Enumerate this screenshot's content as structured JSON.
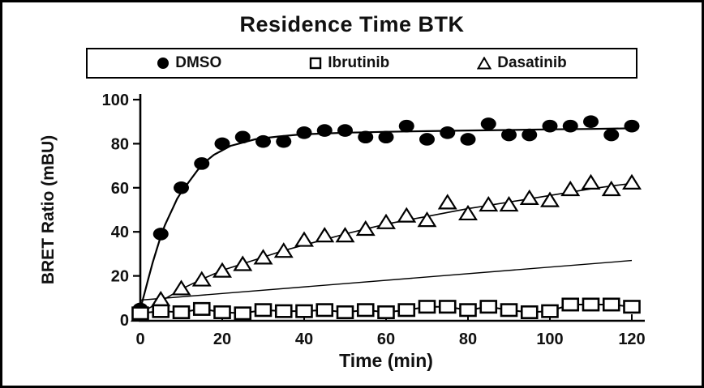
{
  "figure": {
    "background_color": "#ffffff",
    "border_color": "#000000",
    "text_color": "#111111"
  },
  "legend": {
    "items": [
      {
        "label": "DMSO",
        "marker": "filled-circle"
      },
      {
        "label": "Ibrutinib",
        "marker": "open-square"
      },
      {
        "label": "Dasatinib",
        "marker": "open-triangle"
      }
    ]
  },
  "chart_data": {
    "type": "scatter",
    "title": "Residence Time BTK",
    "xlabel": "Time (min)",
    "ylabel": "BRET Ratio (mBU)",
    "xlim": [
      0,
      120
    ],
    "ylim": [
      0,
      100
    ],
    "x_ticks": [
      0,
      20,
      40,
      60,
      80,
      100,
      120
    ],
    "y_ticks": [
      0,
      20,
      40,
      60,
      80,
      100
    ],
    "grid": false,
    "legend_position": "top-center-boxed",
    "x": [
      0,
      5,
      10,
      15,
      20,
      25,
      30,
      35,
      40,
      45,
      50,
      55,
      60,
      65,
      70,
      75,
      80,
      85,
      90,
      95,
      100,
      105,
      110,
      115,
      120
    ],
    "series": [
      {
        "name": "DMSO",
        "marker": "filled-circle",
        "color": "#000000",
        "values": [
          5,
          39,
          60,
          71,
          80,
          83,
          81,
          81,
          85,
          86,
          86,
          83,
          83,
          88,
          82,
          85,
          82,
          89,
          84,
          84,
          88,
          88,
          90,
          84,
          88
        ],
        "fit_curve": [
          [
            0,
            5
          ],
          [
            1,
            12
          ],
          [
            2,
            19
          ],
          [
            3,
            26
          ],
          [
            4,
            32
          ],
          [
            5,
            38
          ],
          [
            6,
            43
          ],
          [
            7,
            47
          ],
          [
            8,
            51
          ],
          [
            9,
            55
          ],
          [
            10,
            58
          ],
          [
            12,
            63
          ],
          [
            14,
            68
          ],
          [
            16,
            72
          ],
          [
            18,
            75
          ],
          [
            20,
            77
          ],
          [
            22,
            79
          ],
          [
            24,
            80
          ],
          [
            26,
            81
          ],
          [
            28,
            82
          ],
          [
            30,
            82.5
          ],
          [
            34,
            83.3
          ],
          [
            38,
            84
          ],
          [
            42,
            84.4
          ],
          [
            46,
            84.7
          ],
          [
            50,
            85
          ],
          [
            55,
            85.2
          ],
          [
            60,
            85.4
          ],
          [
            70,
            85.7
          ],
          [
            80,
            86
          ],
          [
            90,
            86.2
          ],
          [
            100,
            86.5
          ],
          [
            110,
            86.7
          ],
          [
            120,
            87
          ]
        ]
      },
      {
        "name": "Ibrutinib",
        "marker": "open-square",
        "color": "#000000",
        "values": [
          3,
          4,
          3.5,
          5,
          3.5,
          3,
          4.5,
          4,
          4,
          4.5,
          3.5,
          4.5,
          3.5,
          4.5,
          6,
          6,
          4.5,
          6,
          4.5,
          3.5,
          4,
          7,
          7,
          7,
          6
        ],
        "connect_points": true
      },
      {
        "name": "Dasatinib",
        "marker": "open-triangle",
        "color": "#000000",
        "values": [
          2,
          9,
          14,
          18,
          22,
          25,
          28,
          31,
          36,
          38,
          38,
          41,
          44,
          47,
          45,
          53,
          48,
          52,
          52,
          55,
          54,
          59,
          62,
          59,
          62
        ],
        "fit_curve": [
          [
            0,
            3
          ],
          [
            5,
            8.5
          ],
          [
            10,
            14
          ],
          [
            15,
            18.5
          ],
          [
            20,
            22.5
          ],
          [
            25,
            25.5
          ],
          [
            30,
            28.5
          ],
          [
            35,
            31.5
          ],
          [
            40,
            34
          ],
          [
            45,
            36.5
          ],
          [
            50,
            39
          ],
          [
            55,
            41.3
          ],
          [
            60,
            43.5
          ],
          [
            65,
            45.3
          ],
          [
            70,
            47
          ],
          [
            75,
            48.8
          ],
          [
            80,
            50.5
          ],
          [
            85,
            52
          ],
          [
            90,
            53.5
          ],
          [
            95,
            55
          ],
          [
            100,
            56.5
          ],
          [
            105,
            58
          ],
          [
            110,
            59.5
          ],
          [
            115,
            60.8
          ],
          [
            120,
            62
          ]
        ]
      }
    ],
    "extra_line": {
      "description": "unlabeled thin straight trend line",
      "points": [
        [
          0,
          9
        ],
        [
          120,
          27
        ]
      ]
    }
  }
}
